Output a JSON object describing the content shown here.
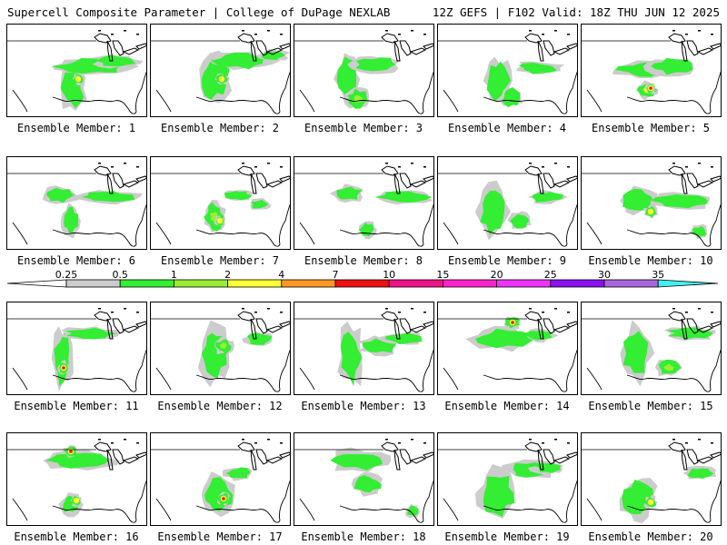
{
  "header": {
    "left": "Supercell Composite Parameter | College of DuPage NEXLAB",
    "right": "12Z GEFS | F102 Valid: 18Z THU JUN 12 2025"
  },
  "panels": [
    {
      "label": "Ensemble Member: 1"
    },
    {
      "label": "Ensemble Member: 2"
    },
    {
      "label": "Ensemble Member: 3"
    },
    {
      "label": "Ensemble Member: 4"
    },
    {
      "label": "Ensemble Member: 5"
    },
    {
      "label": "Ensemble Member: 6"
    },
    {
      "label": "Ensemble Member: 7"
    },
    {
      "label": "Ensemble Member: 8"
    },
    {
      "label": "Ensemble Member: 9"
    },
    {
      "label": "Ensemble Member: 10"
    },
    {
      "label": "Ensemble Member: 11"
    },
    {
      "label": "Ensemble Member: 12"
    },
    {
      "label": "Ensemble Member: 13"
    },
    {
      "label": "Ensemble Member: 14"
    },
    {
      "label": "Ensemble Member: 15"
    },
    {
      "label": "Ensemble Member: 16"
    },
    {
      "label": "Ensemble Member: 17"
    },
    {
      "label": "Ensemble Member: 18"
    },
    {
      "label": "Ensemble Member: 19"
    },
    {
      "label": "Ensemble Member: 20"
    }
  ],
  "colorbar": {
    "ticks": [
      "0.25",
      "0.5",
      "1",
      "2",
      "4",
      "7",
      "10",
      "15",
      "20",
      "25",
      "30",
      "35"
    ],
    "colors": [
      "#cccccc",
      "#33ee33",
      "#99ee33",
      "#ffff33",
      "#ff9922",
      "#ee1111",
      "#ee1188",
      "#ff22cc",
      "#ee33ff",
      "#8811ee",
      "#aa66dd",
      "#44eeee"
    ]
  }
}
